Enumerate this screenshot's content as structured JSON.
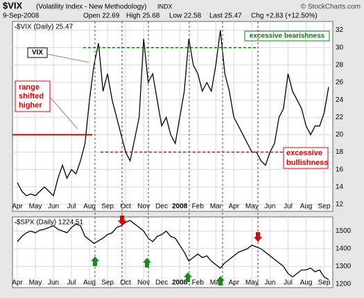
{
  "header": {
    "symbol": "$VIX",
    "name": "(Volatility Index - New Methodology)",
    "exchange": "INDX",
    "date": "9-Sep-2008",
    "fields": [
      "Open 22.69",
      "High 25.68",
      "Low 22.58",
      "Last 25.47",
      "Chg +2.83 (+12.50%)"
    ],
    "credit": "© StockCharts.com"
  },
  "chart_data": [
    {
      "type": "line",
      "legend": "$VIX (Daily) 25.47",
      "color": "#000000",
      "categories": [
        "Apr",
        null,
        null,
        null,
        "May",
        null,
        null,
        null,
        "Jun",
        null,
        null,
        null,
        "Jul",
        null,
        null,
        null,
        "Aug",
        null,
        null,
        null,
        "Sep",
        null,
        null,
        null,
        "Oct",
        null,
        null,
        null,
        "Nov",
        null,
        null,
        null,
        "Dec",
        null,
        null,
        null,
        "2008",
        null,
        null,
        null,
        "Feb",
        null,
        null,
        null,
        "Mar",
        null,
        null,
        null,
        "Apr",
        null,
        null,
        null,
        "May",
        null,
        null,
        null,
        "Jun",
        null,
        null,
        null,
        "Jul",
        null,
        null,
        null,
        "Aug",
        null,
        null,
        null,
        "Sep",
        null
      ],
      "values": [
        14.5,
        13.5,
        13,
        13.2,
        13,
        13.5,
        14,
        13.5,
        13,
        15,
        16.5,
        15,
        16,
        15.5,
        17,
        19,
        24,
        28,
        30.5,
        25,
        27,
        24,
        22,
        20,
        18,
        17,
        19.5,
        22,
        31,
        26,
        27,
        24,
        21,
        22,
        20,
        19,
        22,
        25,
        31,
        28,
        27,
        25,
        26,
        25,
        28,
        32,
        27,
        25,
        22,
        21,
        20,
        19,
        18,
        18,
        17,
        16.5,
        18,
        19,
        22,
        23,
        27,
        25,
        24,
        23,
        21,
        20,
        21,
        21,
        22.5,
        25.47
      ],
      "ylim": [
        11.2,
        33
      ],
      "yticks": [
        12,
        14,
        16,
        18,
        20,
        22,
        24,
        26,
        28,
        30,
        32
      ],
      "reference_lines": [
        {
          "value": 30,
          "color": "#008000",
          "label": "excessive bearishness"
        },
        {
          "value": 18,
          "color": "#e00000",
          "label": "excessive bullishness"
        },
        {
          "value": 20,
          "color": "#e00000",
          "label": "range shifted higher"
        }
      ],
      "annotations": [
        "VIX"
      ]
    },
    {
      "type": "line",
      "legend": "$SPX (Daily) 1224.51",
      "color": "#000000",
      "categories": [
        "Apr",
        null,
        null,
        null,
        "May",
        null,
        null,
        null,
        "Jun",
        null,
        null,
        null,
        "Jul",
        null,
        null,
        null,
        "Aug",
        null,
        null,
        null,
        "Sep",
        null,
        null,
        null,
        "Oct",
        null,
        null,
        null,
        "Nov",
        null,
        null,
        null,
        "Dec",
        null,
        null,
        null,
        "2008",
        null,
        null,
        null,
        "Feb",
        null,
        null,
        null,
        "Mar",
        null,
        null,
        null,
        "Apr",
        null,
        null,
        null,
        "May",
        null,
        null,
        null,
        "Jun",
        null,
        null,
        null,
        "Jul",
        null,
        null,
        null,
        "Aug",
        null,
        null,
        null,
        "Sep",
        null
      ],
      "values": [
        1440,
        1470,
        1490,
        1500,
        1490,
        1505,
        1510,
        1520,
        1530,
        1510,
        1500,
        1490,
        1520,
        1540,
        1530,
        1470,
        1450,
        1430,
        1445,
        1460,
        1480,
        1490,
        1520,
        1530,
        1550,
        1560,
        1540,
        1520,
        1500,
        1460,
        1440,
        1470,
        1480,
        1500,
        1470,
        1460,
        1420,
        1380,
        1330,
        1350,
        1370,
        1350,
        1360,
        1330,
        1310,
        1290,
        1320,
        1340,
        1360,
        1380,
        1390,
        1400,
        1420,
        1410,
        1400,
        1380,
        1360,
        1340,
        1320,
        1300,
        1260,
        1240,
        1260,
        1280,
        1280,
        1290,
        1270,
        1280,
        1240,
        1224.51
      ],
      "ylim": [
        1180,
        1580
      ],
      "yticks": [
        1200,
        1300,
        1400,
        1500
      ]
    }
  ]
}
